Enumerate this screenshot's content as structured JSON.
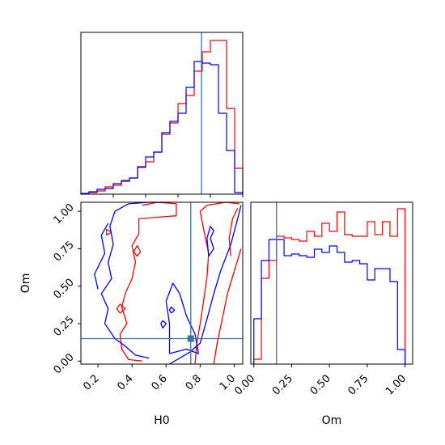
{
  "chart_data": [
    {
      "type": "histogram",
      "panel": "H0 marginal",
      "bin_edges": [
        0.0,
        0.05,
        0.1,
        0.15,
        0.2,
        0.25,
        0.3,
        0.35,
        0.4,
        0.45,
        0.5,
        0.55,
        0.6,
        0.65,
        0.7,
        0.75,
        0.8,
        0.85,
        0.9,
        0.95,
        1.0
      ],
      "xlim": [
        0.0,
        1.0
      ],
      "series": [
        {
          "color": "#ff0000",
          "values": [
            0.2,
            1.0,
            2.0,
            4.5,
            5.5,
            8.5,
            10.0,
            16.5,
            20.0,
            26.0,
            37.0,
            44.0,
            56.0,
            61.0,
            76.0,
            88.0,
            95.0,
            95.0,
            53.0,
            16.0
          ]
        },
        {
          "color": "#0000ff",
          "values": [
            0.5,
            1.5,
            3.0,
            3.5,
            6.5,
            8.0,
            10.0,
            17.0,
            23.0,
            26.0,
            38.0,
            45.0,
            50.0,
            66.0,
            82.0,
            81.0,
            80.0,
            50.0,
            27.0,
            1.0
          ]
        }
      ],
      "truth_line_x": 0.745
    },
    {
      "type": "contour",
      "panel": "Om vs H0",
      "xlabel": "H0",
      "ylabel": "Om",
      "xlim": [
        0.1,
        1.05
      ],
      "ylim": [
        -0.02,
        1.06
      ],
      "xticks": [
        "0.2",
        "0.4",
        "0.6",
        "0.8",
        "1.0"
      ],
      "yticks": [
        "0.00",
        "0.25",
        "0.50",
        "0.75",
        "1.00"
      ],
      "series": [
        {
          "color": "#ff0000",
          "contours": [
            [
              [
                0.46,
                1.04
              ],
              [
                0.55,
                1.06
              ],
              [
                0.66,
                1.05
              ],
              [
                0.66,
                0.97
              ],
              [
                0.55,
                0.96
              ],
              [
                0.44,
                0.95
              ],
              [
                0.44,
                0.85
              ],
              [
                0.4,
                0.77
              ],
              [
                0.42,
                0.66
              ],
              [
                0.4,
                0.55
              ],
              [
                0.36,
                0.45
              ],
              [
                0.34,
                0.36
              ],
              [
                0.37,
                0.25
              ],
              [
                0.33,
                0.18
              ],
              [
                0.34,
                0.08
              ],
              [
                0.38,
                0.01
              ],
              [
                0.46,
                0.0
              ]
            ],
            [
              [
                0.77,
                -0.02
              ],
              [
                0.78,
                0.12
              ],
              [
                0.8,
                0.25
              ],
              [
                0.82,
                0.4
              ],
              [
                0.84,
                0.56
              ],
              [
                0.85,
                0.72
              ],
              [
                0.82,
                0.88
              ],
              [
                0.8,
                1.0
              ],
              [
                0.84,
                1.04
              ],
              [
                0.95,
                1.06
              ],
              [
                1.03,
                1.05
              ]
            ],
            [
              [
                0.88,
                -0.02
              ],
              [
                0.9,
                0.12
              ],
              [
                0.93,
                0.28
              ],
              [
                0.96,
                0.45
              ],
              [
                1.0,
                0.6
              ],
              [
                1.04,
                0.75
              ]
            ],
            [
              [
                0.98,
                0.7
              ],
              [
                0.97,
                0.82
              ],
              [
                0.99,
                0.95
              ],
              [
                1.02,
                1.02
              ]
            ],
            [
              [
                0.25,
                0.84
              ],
              [
                0.28,
                0.86
              ],
              [
                0.25,
                0.88
              ],
              [
                0.25,
                0.84
              ]
            ],
            [
              [
                0.43,
                0.7
              ],
              [
                0.45,
                0.73
              ],
              [
                0.43,
                0.77
              ],
              [
                0.41,
                0.73
              ],
              [
                0.43,
                0.7
              ]
            ],
            [
              [
                0.33,
                0.32
              ],
              [
                0.36,
                0.35
              ],
              [
                0.33,
                0.38
              ],
              [
                0.31,
                0.35
              ],
              [
                0.33,
                0.32
              ]
            ]
          ]
        }
      ],
      "series_blue": [
        {
          "color": "#0000ff",
          "contours": [
            [
              [
                0.5,
                0.02
              ],
              [
                0.42,
                0.04
              ],
              [
                0.36,
                0.1
              ],
              [
                0.3,
                0.15
              ],
              [
                0.24,
                0.25
              ],
              [
                0.26,
                0.35
              ],
              [
                0.22,
                0.45
              ],
              [
                0.28,
                0.55
              ],
              [
                0.26,
                0.66
              ],
              [
                0.29,
                0.78
              ],
              [
                0.27,
                0.9
              ],
              [
                0.3,
                1.0
              ],
              [
                0.38,
                1.05
              ],
              [
                0.5,
                1.06
              ],
              [
                0.62,
                1.06
              ]
            ],
            [
              [
                0.2,
                0.48
              ],
              [
                0.18,
                0.58
              ],
              [
                0.24,
                0.72
              ],
              [
                0.22,
                0.84
              ],
              [
                0.26,
                0.92
              ]
            ],
            [
              [
                0.62,
                -0.02
              ],
              [
                0.68,
                0.02
              ],
              [
                0.74,
                0.06
              ],
              [
                0.8,
                0.12
              ],
              [
                0.84,
                0.28
              ],
              [
                0.88,
                0.45
              ],
              [
                0.92,
                0.6
              ],
              [
                0.98,
                0.78
              ],
              [
                1.02,
                0.95
              ],
              [
                1.04,
                1.04
              ]
            ],
            [
              [
                0.62,
                0.05
              ],
              [
                0.72,
                0.08
              ],
              [
                0.79,
                0.05
              ],
              [
                0.77,
                0.18
              ],
              [
                0.72,
                0.3
              ],
              [
                0.68,
                0.45
              ],
              [
                0.64,
                0.52
              ],
              [
                0.6,
                0.4
              ],
              [
                0.62,
                0.25
              ],
              [
                0.62,
                0.05
              ]
            ],
            [
              [
                0.85,
                0.7
              ],
              [
                0.88,
                0.75
              ],
              [
                0.86,
                0.82
              ],
              [
                0.88,
                0.87
              ],
              [
                0.86,
                0.9
              ],
              [
                0.84,
                0.82
              ],
              [
                0.85,
                0.7
              ]
            ],
            [
              [
                0.58,
                0.22
              ],
              [
                0.6,
                0.25
              ],
              [
                0.58,
                0.27
              ],
              [
                0.57,
                0.25
              ],
              [
                0.58,
                0.22
              ]
            ],
            [
              [
                0.63,
                0.32
              ],
              [
                0.65,
                0.34
              ],
              [
                0.63,
                0.36
              ],
              [
                0.62,
                0.34
              ],
              [
                0.63,
                0.32
              ]
            ]
          ]
        }
      ],
      "truth_point": [
        0.745,
        0.15
      ]
    },
    {
      "type": "histogram",
      "panel": "Om marginal",
      "xlabel": "Om",
      "xlim": [
        -0.02,
        1.05
      ],
      "xticks": [
        "0.00",
        "0.25",
        "0.50",
        "0.75",
        "1.00"
      ],
      "bin_edges": [
        0.0,
        0.05,
        0.1,
        0.15,
        0.2,
        0.25,
        0.3,
        0.35,
        0.4,
        0.45,
        0.5,
        0.55,
        0.6,
        0.65,
        0.7,
        0.75,
        0.8,
        0.85,
        0.9,
        0.95,
        1.0
      ],
      "series": [
        {
          "color": "#ff0000",
          "values": [
            3.0,
            53.0,
            64.0,
            79.0,
            78.0,
            77.0,
            76.0,
            82.0,
            79.0,
            87.0,
            82.0,
            94.0,
            80.0,
            79.0,
            79.0,
            88.0,
            80.0,
            88.0,
            79.0,
            96.0
          ]
        },
        {
          "color": "#0000ff",
          "values": [
            28.0,
            64.0,
            77.0,
            77.0,
            67.0,
            68.0,
            67.0,
            66.0,
            71.0,
            69.0,
            73.0,
            69.0,
            63.0,
            64.0,
            62.0,
            52.0,
            59.0,
            59.0,
            51.0,
            9.0
          ]
        }
      ],
      "truth_line_x": 0.15
    }
  ]
}
